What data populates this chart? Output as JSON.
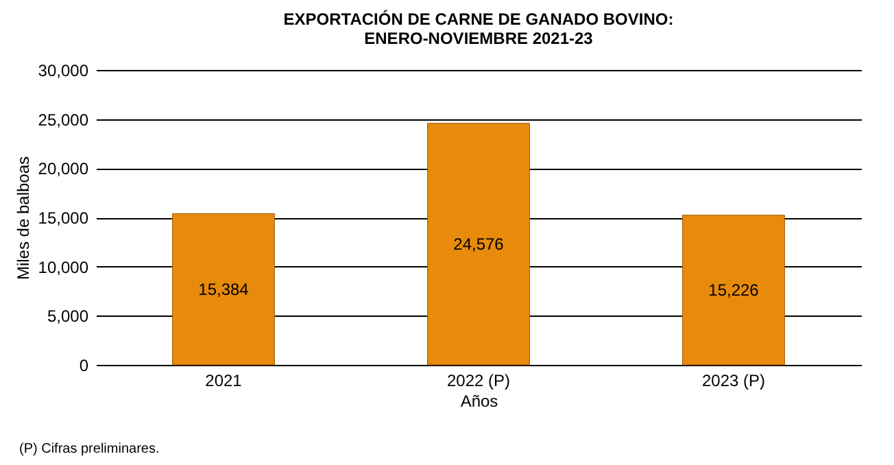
{
  "chart_data": {
    "type": "bar",
    "title": "EXPORTACIÓN DE CARNE DE GANADO BOVINO:\nENERO-NOVIEMBRE 2021-23",
    "xlabel": "Años",
    "ylabel": "Miles de balboas",
    "categories": [
      "2021",
      "2022 (P)",
      "2023 (P)"
    ],
    "values": [
      15384,
      24576,
      15226
    ],
    "value_labels": [
      "15,384",
      "24,576",
      "15,226"
    ],
    "color": "#e88a0c",
    "ylim": [
      0,
      30000
    ],
    "yticks": [
      0,
      {
        "value": 5000,
        "label": "5,000"
      },
      {
        "value": 10000,
        "label": "10,000"
      },
      {
        "value": 15000,
        "label": "15,000"
      },
      {
        "value": 20000,
        "label": "20,000"
      },
      {
        "value": 25000,
        "label": "25,000"
      },
      {
        "value": 30000,
        "label": "30,000"
      }
    ],
    "grid": "y",
    "annotations": [
      "(P) Cifras preliminares."
    ]
  }
}
